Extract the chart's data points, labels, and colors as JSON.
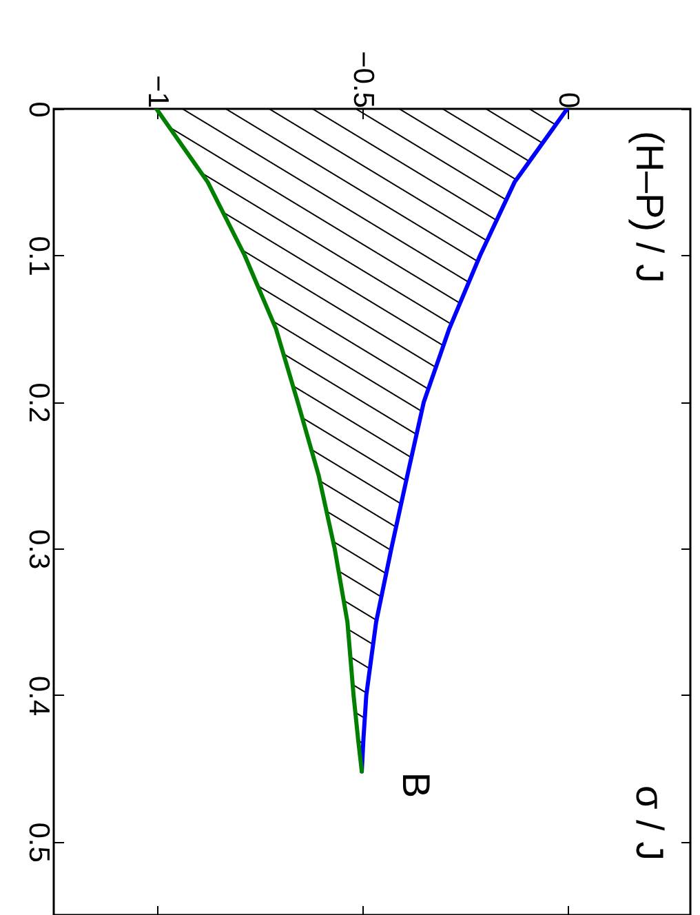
{
  "chart_data": {
    "type": "line",
    "series": [
      {
        "color": "#0000ff",
        "x": [
          0,
          -0.128,
          -0.212,
          -0.287,
          -0.349,
          -0.389,
          -0.428,
          -0.465,
          -0.489,
          -0.496,
          -0.5
        ],
        "values": [
          0,
          0.05,
          0.1,
          0.15,
          0.2,
          0.25,
          0.3,
          0.35,
          0.4,
          0.43,
          0.452
        ]
      },
      {
        "color": "#007f00",
        "x": [
          -1,
          -0.875,
          -0.785,
          -0.709,
          -0.656,
          -0.605,
          -0.566,
          -0.535,
          -0.52,
          -0.509,
          -0.5
        ],
        "values": [
          0,
          0.05,
          0.1,
          0.15,
          0.2,
          0.25,
          0.3,
          0.35,
          0.4,
          0.43,
          0.452
        ]
      }
    ],
    "xlim": [
      -1.25,
      0.3
    ],
    "xticks": [
      {
        "value": -1,
        "label": "−1"
      },
      {
        "value": -0.5,
        "label": "−0.5"
      },
      0
    ],
    "ylim": [
      0.55,
      0
    ],
    "yticks": [
      0,
      0.1,
      0.2,
      0.3,
      0.4,
      0.5
    ],
    "annotations": [
      "(H–P) / J",
      "σ / J",
      {
        "text": "B",
        "x": -0.5,
        "y": 0.452
      }
    ],
    "grid": false,
    "marker": "none",
    "line_style": "solid"
  }
}
